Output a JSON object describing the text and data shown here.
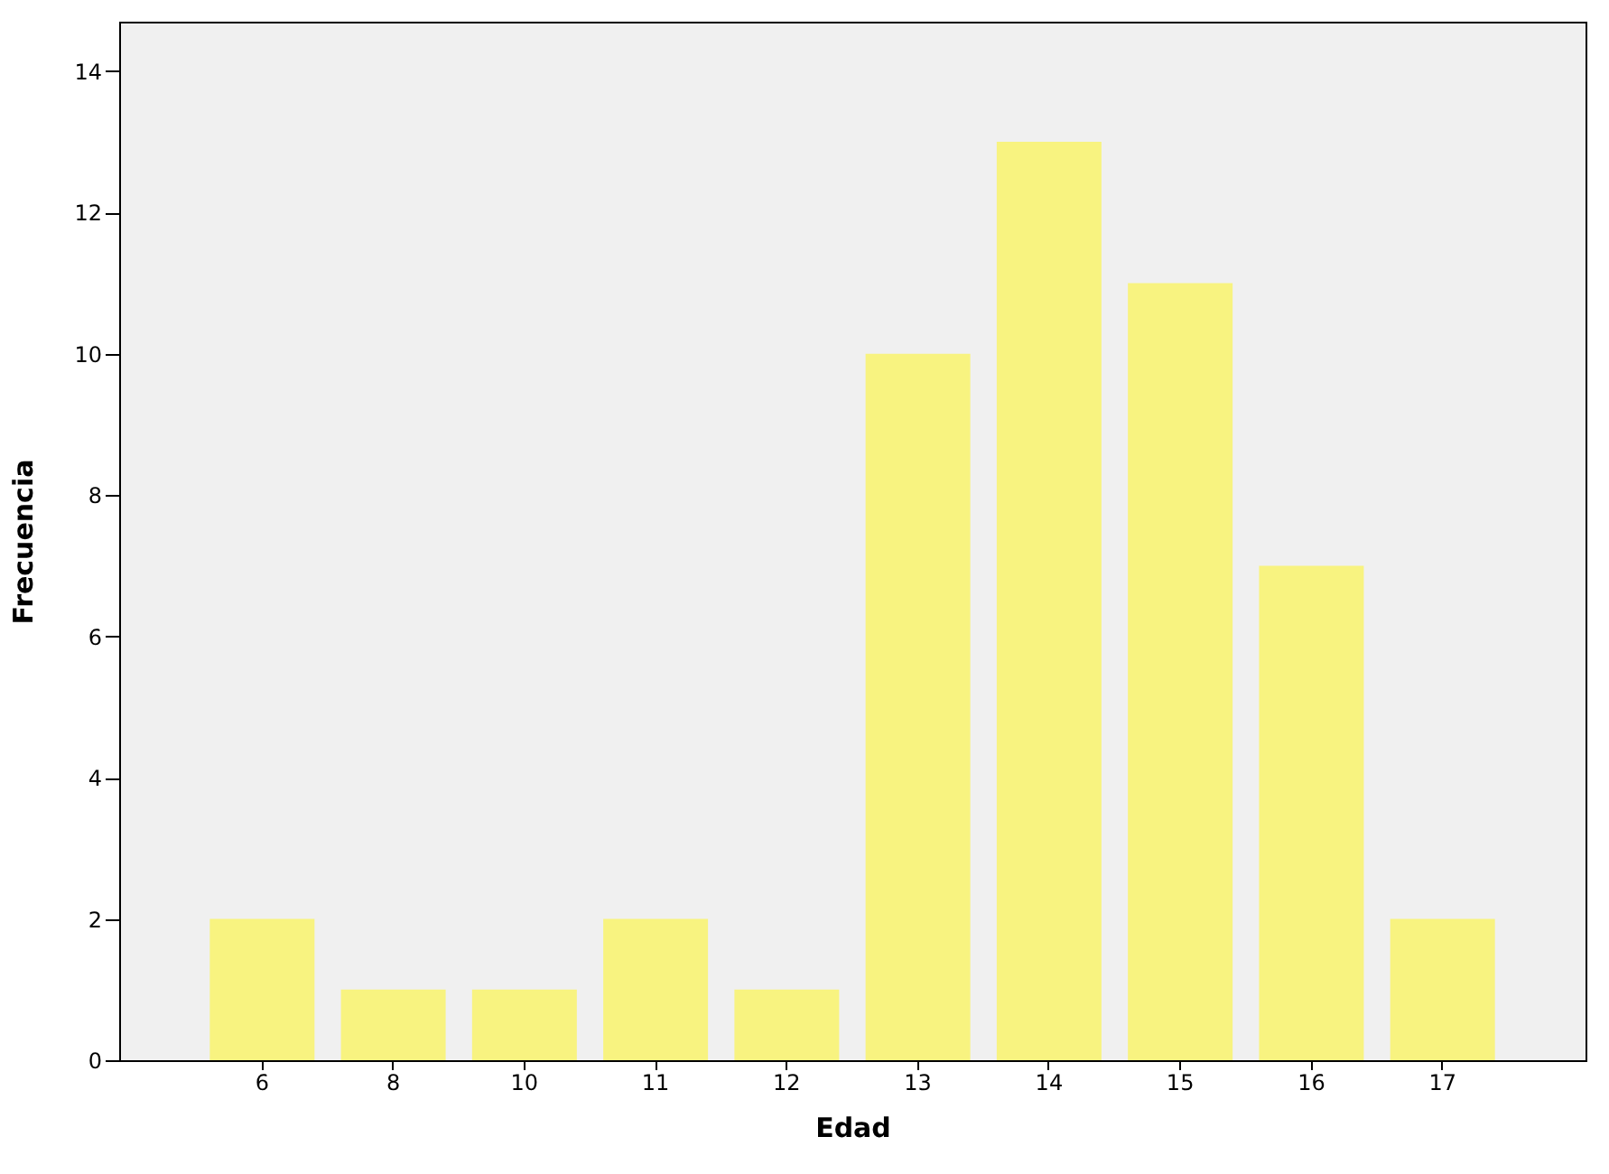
{
  "chart_data": {
    "type": "bar",
    "xlabel": "Edad",
    "ylabel": "Frecuencia",
    "categories": [
      "6",
      "8",
      "10",
      "11",
      "12",
      "13",
      "14",
      "15",
      "16",
      "17"
    ],
    "values": [
      2,
      1,
      1,
      2,
      1,
      10,
      13,
      11,
      7,
      2
    ],
    "color": "#f8f380",
    "ylim": [
      0,
      14.7
    ],
    "yticks": [
      0,
      2,
      4,
      6,
      8,
      10,
      12,
      14
    ],
    "grid": false
  }
}
